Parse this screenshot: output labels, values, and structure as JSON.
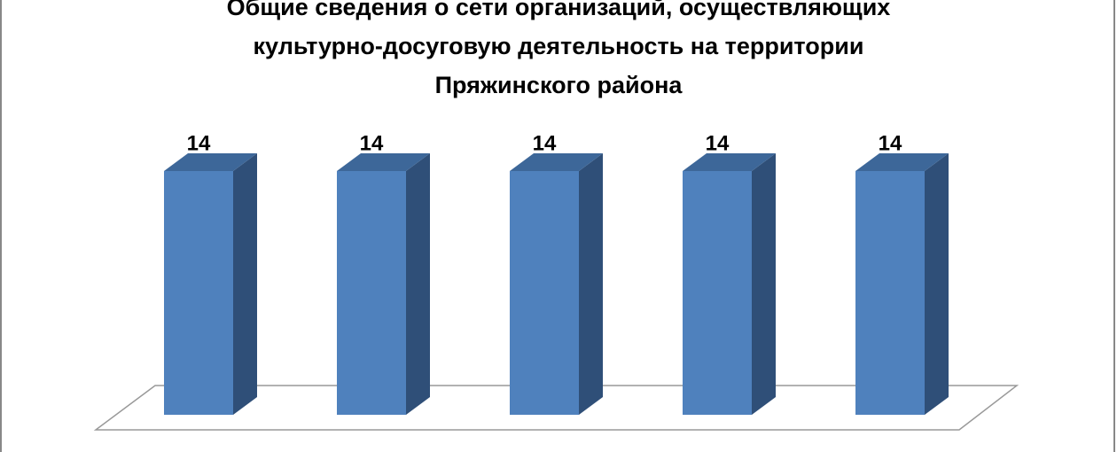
{
  "chart_data": {
    "type": "bar3d",
    "title": "Общие сведения о сети организаций, осуществляющих культурно-досуговую деятельность на территории Пряжинского района",
    "categories": [
      null,
      null,
      null,
      null,
      null
    ],
    "values": [
      14,
      14,
      14,
      14,
      14
    ],
    "color": "#4f81bd"
  }
}
